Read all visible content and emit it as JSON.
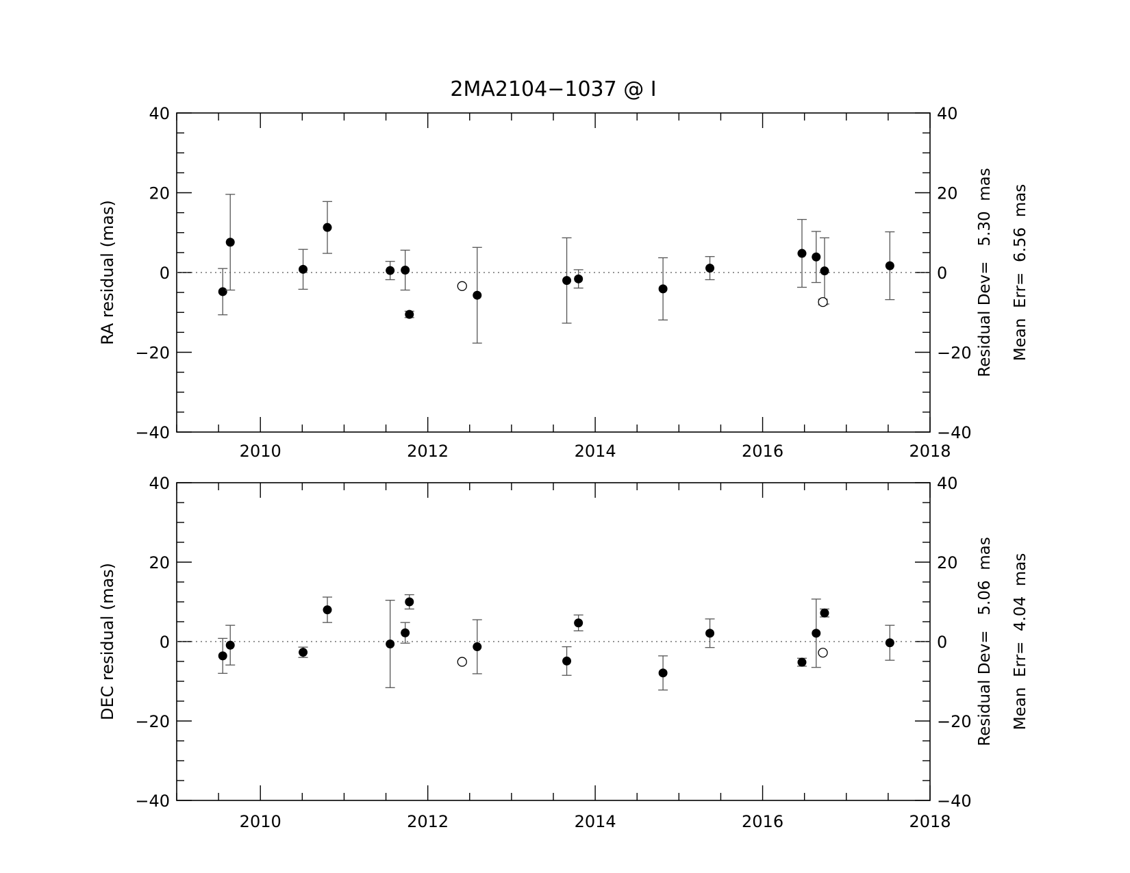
{
  "chart_data": [
    {
      "type": "scatter",
      "title": "2MA2104−1037 @ I",
      "xlabel": "",
      "ylabel": "RA residual (mas)",
      "xlim": [
        2009.0,
        2018.0
      ],
      "ylim": [
        -40,
        40
      ],
      "x_ticks": [
        2010,
        2012,
        2014,
        2016,
        2018
      ],
      "y_ticks": [
        -40,
        -20,
        0,
        20,
        40
      ],
      "zero_line": true,
      "stats": [
        "Residual Dev=   5.30  mas",
        "Mean  Err=  6.56  mas"
      ],
      "series": [
        {
          "marker": "filled",
          "points": [
            {
              "x": 2009.55,
              "y": -4.8,
              "err": 5.8
            },
            {
              "x": 2009.64,
              "y": 7.6,
              "err": 12.0
            },
            {
              "x": 2010.51,
              "y": 0.8,
              "err": 5.0
            },
            {
              "x": 2010.8,
              "y": 11.3,
              "err": 6.5
            },
            {
              "x": 2011.55,
              "y": 0.5,
              "err": 2.3
            },
            {
              "x": 2011.73,
              "y": 0.6,
              "err": 5.0
            },
            {
              "x": 2011.78,
              "y": -10.5,
              "err": 0.8
            },
            {
              "x": 2012.59,
              "y": -5.7,
              "err": 12.0
            },
            {
              "x": 2013.66,
              "y": -2.0,
              "err": 10.7
            },
            {
              "x": 2013.8,
              "y": -1.6,
              "err": 2.3
            },
            {
              "x": 2014.81,
              "y": -4.1,
              "err": 7.8
            },
            {
              "x": 2015.37,
              "y": 1.1,
              "err": 2.9
            },
            {
              "x": 2016.47,
              "y": 4.8,
              "err": 8.5
            },
            {
              "x": 2016.64,
              "y": 3.9,
              "err": 6.4
            },
            {
              "x": 2016.74,
              "y": 0.4,
              "err": 8.3
            },
            {
              "x": 2017.52,
              "y": 1.7,
              "err": 8.5
            }
          ]
        },
        {
          "marker": "open",
          "points": [
            {
              "x": 2012.41,
              "y": -3.4,
              "err": 0
            },
            {
              "x": 2016.72,
              "y": -7.4,
              "err": 0.7
            }
          ]
        }
      ]
    },
    {
      "type": "scatter",
      "title": "",
      "xlabel": "",
      "ylabel": "DEC residual (mas)",
      "xlim": [
        2009.0,
        2018.0
      ],
      "ylim": [
        -40,
        40
      ],
      "x_ticks": [
        2010,
        2012,
        2014,
        2016,
        2018
      ],
      "y_ticks": [
        -40,
        -20,
        0,
        20,
        40
      ],
      "zero_line": true,
      "stats": [
        "Residual Dev=   5.06  mas",
        "Mean  Err=  4.04  mas"
      ],
      "series": [
        {
          "marker": "filled",
          "points": [
            {
              "x": 2009.55,
              "y": -3.6,
              "err": 4.4
            },
            {
              "x": 2009.64,
              "y": -0.9,
              "err": 5.0
            },
            {
              "x": 2010.51,
              "y": -2.7,
              "err": 1.3
            },
            {
              "x": 2010.8,
              "y": 8.0,
              "err": 3.2
            },
            {
              "x": 2011.55,
              "y": -0.6,
              "err": 11.0
            },
            {
              "x": 2011.73,
              "y": 2.2,
              "err": 2.6
            },
            {
              "x": 2011.78,
              "y": 10.0,
              "err": 1.8
            },
            {
              "x": 2012.59,
              "y": -1.3,
              "err": 6.8
            },
            {
              "x": 2013.66,
              "y": -4.9,
              "err": 3.6
            },
            {
              "x": 2013.8,
              "y": 4.7,
              "err": 2.0
            },
            {
              "x": 2014.81,
              "y": -7.9,
              "err": 4.3
            },
            {
              "x": 2015.37,
              "y": 2.1,
              "err": 3.6
            },
            {
              "x": 2016.47,
              "y": -5.2,
              "err": 1.0
            },
            {
              "x": 2016.64,
              "y": 2.1,
              "err": 8.6
            },
            {
              "x": 2016.74,
              "y": 7.2,
              "err": 1.0
            },
            {
              "x": 2017.52,
              "y": -0.3,
              "err": 4.4
            }
          ]
        },
        {
          "marker": "open",
          "points": [
            {
              "x": 2012.41,
              "y": -5.1,
              "err": 0
            },
            {
              "x": 2016.72,
              "y": -2.8,
              "err": 0
            }
          ]
        }
      ]
    }
  ]
}
